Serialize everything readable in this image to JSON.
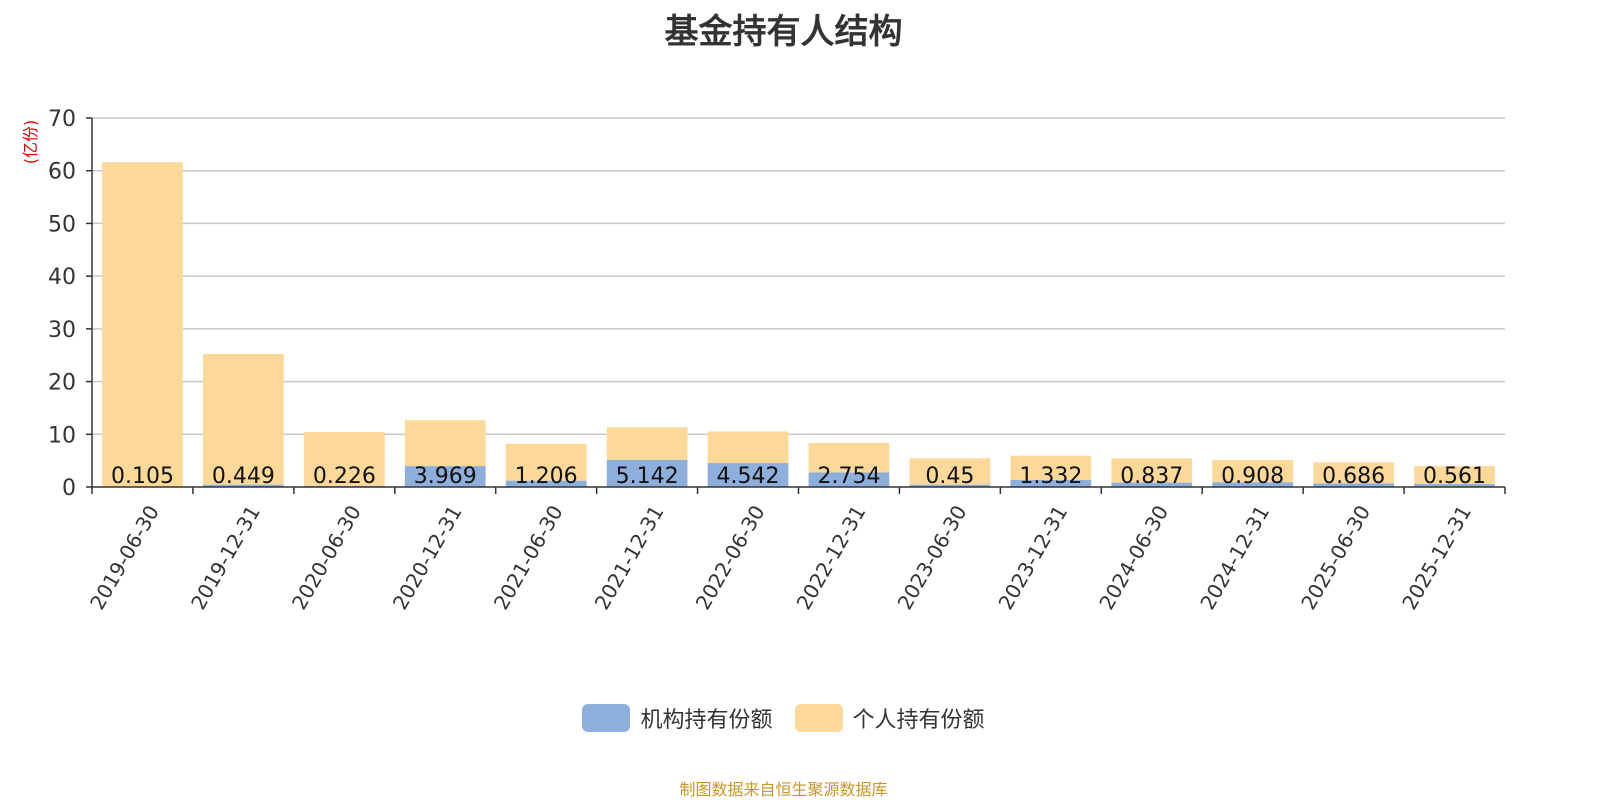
{
  "chart_data": {
    "type": "bar",
    "stacked": true,
    "title": "基金持有人结构",
    "ylabel": "(亿份)",
    "ylim": [
      0,
      70
    ],
    "yticks": [
      0,
      10,
      20,
      30,
      40,
      50,
      60,
      70
    ],
    "grid": true,
    "legend_position": "bottom",
    "categories": [
      "2019-06-30",
      "2019-12-31",
      "2020-06-30",
      "2020-12-31",
      "2021-06-30",
      "2021-12-31",
      "2022-06-30",
      "2022-12-31",
      "2023-06-30",
      "2023-12-31",
      "2024-06-30",
      "2024-12-31",
      "2025-06-30",
      "2025-12-31"
    ],
    "series": [
      {
        "name": "机构持有份额",
        "color": "#8eaedb",
        "values": [
          0.105,
          0.449,
          0.226,
          3.969,
          1.206,
          5.142,
          4.542,
          2.754,
          0.45,
          1.332,
          0.837,
          0.908,
          0.686,
          0.561
        ],
        "labels": [
          "0.105",
          "0.449",
          "0.226",
          "3.969",
          "1.206",
          "5.142",
          "4.542",
          "2.754",
          "0.45",
          "1.332",
          "0.837",
          "0.908",
          "0.686",
          "0.561"
        ]
      },
      {
        "name": "个人持有份额",
        "color": "#fdd999",
        "values": [
          61.5,
          24.8,
          10.2,
          8.7,
          7.0,
          6.2,
          6.0,
          5.6,
          5.0,
          4.6,
          4.6,
          4.2,
          4.0,
          3.4
        ]
      }
    ]
  },
  "footer": "制图数据来自恒生聚源数据库"
}
